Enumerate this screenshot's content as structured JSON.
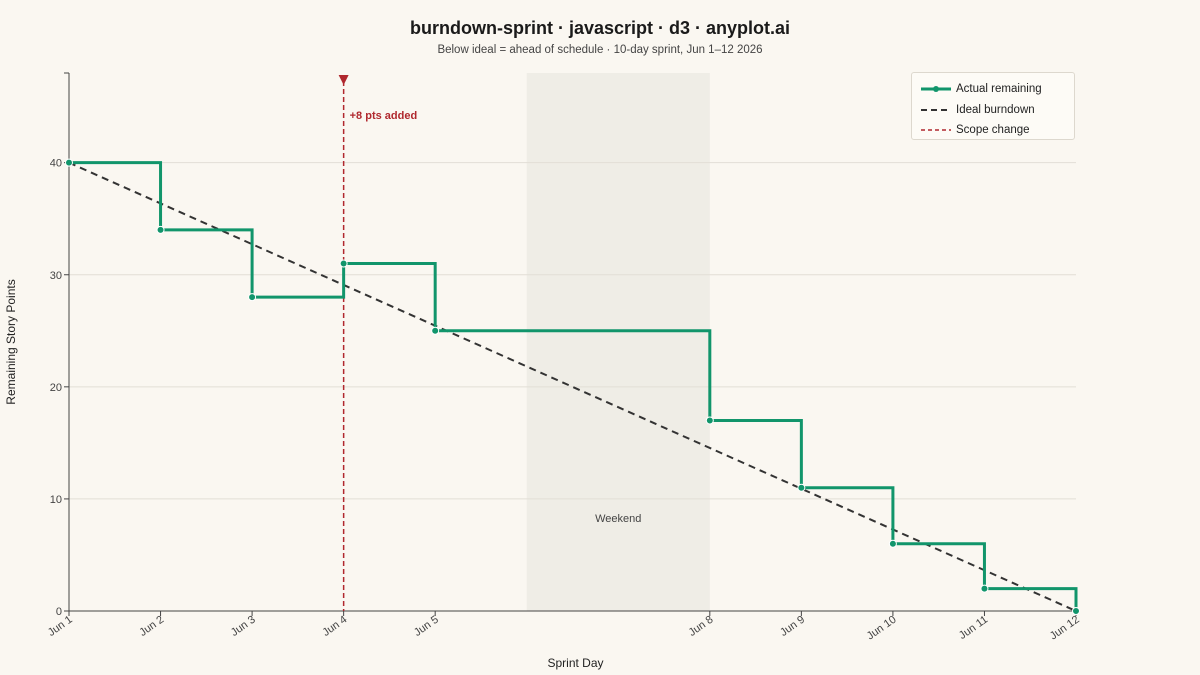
{
  "colors": {
    "background": "#FAF7F1",
    "actual": "#11956B",
    "ideal": "#333333",
    "scope": "#B0282E",
    "weekend_band": "#EFEDE6",
    "grid": "#E2DED6"
  },
  "chart_data": {
    "type": "line",
    "title": "burndown-sprint · javascript · d3 · anyplot.ai",
    "subtitle": "Below ideal = ahead of schedule · 10-day sprint, Jun 1–12 2026",
    "xlabel": "Sprint Day",
    "ylabel": "Remaining Story Points",
    "ylim": [
      0,
      48
    ],
    "yticks": [
      0,
      10,
      20,
      30,
      40
    ],
    "grid": true,
    "legend_position": "top-right",
    "x_domain": [
      "2026-06-01",
      "2026-06-12"
    ],
    "xticks": [
      {
        "date": "2026-06-01",
        "label": "Jun 1"
      },
      {
        "date": "2026-06-02",
        "label": "Jun 2"
      },
      {
        "date": "2026-06-03",
        "label": "Jun 3"
      },
      {
        "date": "2026-06-04",
        "label": "Jun 4"
      },
      {
        "date": "2026-06-05",
        "label": "Jun 5"
      },
      {
        "date": "2026-06-08",
        "label": "Jun 8"
      },
      {
        "date": "2026-06-09",
        "label": "Jun 9"
      },
      {
        "date": "2026-06-10",
        "label": "Jun 10"
      },
      {
        "date": "2026-06-11",
        "label": "Jun 11"
      },
      {
        "date": "2026-06-12",
        "label": "Jun 12"
      }
    ],
    "series": [
      {
        "name": "Actual remaining",
        "style": "step",
        "points": [
          {
            "date": "2026-06-01",
            "y": 40
          },
          {
            "date": "2026-06-02",
            "y": 34
          },
          {
            "date": "2026-06-03",
            "y": 28
          },
          {
            "date": "2026-06-04",
            "y": 31
          },
          {
            "date": "2026-06-05",
            "y": 25
          },
          {
            "date": "2026-06-08",
            "y": 17
          },
          {
            "date": "2026-06-09",
            "y": 11
          },
          {
            "date": "2026-06-10",
            "y": 6
          },
          {
            "date": "2026-06-11",
            "y": 2
          },
          {
            "date": "2026-06-12",
            "y": 0
          }
        ]
      },
      {
        "name": "Ideal burndown",
        "style": "dashed",
        "points": [
          {
            "date": "2026-06-01",
            "y": 40
          },
          {
            "date": "2026-06-12",
            "y": 0
          }
        ]
      }
    ],
    "scope_change": {
      "name": "Scope change",
      "date": "2026-06-04",
      "label": "+8 pts added"
    },
    "band": {
      "label": "Weekend",
      "start": "2026-06-06",
      "end": "2026-06-08"
    }
  }
}
